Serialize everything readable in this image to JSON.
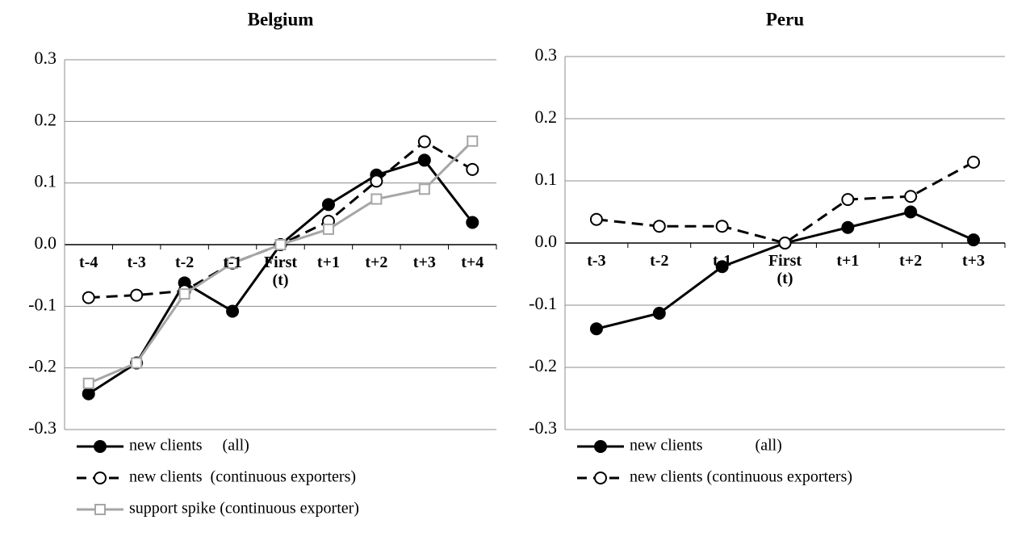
{
  "chart_data": [
    {
      "type": "line",
      "title": "Belgium",
      "categories": [
        "t-4",
        "t-3",
        "t-2",
        "t-1",
        "First\n(t)",
        "t+1",
        "t+2",
        "t+3",
        "t+4"
      ],
      "series": [
        {
          "name": "new clients     (all)",
          "color": "#000000",
          "line_style": "solid",
          "marker": "circle",
          "marker_fill": "#000000",
          "values": [
            -0.242,
            -0.192,
            -0.062,
            -0.108,
            0.0,
            0.065,
            0.113,
            0.137,
            0.036
          ]
        },
        {
          "name": "new clients  (continuous exporters)",
          "color": "#000000",
          "line_style": "dashed",
          "marker": "circle",
          "marker_fill": "#ffffff",
          "values": [
            -0.086,
            -0.082,
            -0.075,
            -0.03,
            0.0,
            0.038,
            0.103,
            0.167,
            0.122
          ]
        },
        {
          "name": "support spike (continuous exporter)",
          "color": "#a6a6a6",
          "line_style": "solid",
          "marker": "square",
          "marker_fill": "#ffffff",
          "values": [
            -0.225,
            -0.192,
            -0.08,
            -0.03,
            0.0,
            0.025,
            0.074,
            0.09,
            0.168
          ]
        }
      ],
      "ylim": [
        -0.3,
        0.3
      ],
      "yticks": [
        -0.3,
        -0.2,
        -0.1,
        {
          "value": 0,
          "label": "0.0"
        },
        0.1,
        0.2,
        0.3
      ],
      "grid": true
    },
    {
      "type": "line",
      "title": "Peru",
      "categories": [
        "t-3",
        "t-2",
        "t-1",
        "First\n(t)",
        "t+1",
        "t+2",
        "t+3"
      ],
      "series": [
        {
          "name": "new clients             (all)",
          "color": "#000000",
          "line_style": "solid",
          "marker": "circle",
          "marker_fill": "#000000",
          "values": [
            -0.138,
            -0.113,
            -0.038,
            0.0,
            0.025,
            0.05,
            0.005
          ]
        },
        {
          "name": "new clients (continuous exporters)",
          "color": "#000000",
          "line_style": "dashed",
          "marker": "circle",
          "marker_fill": "#ffffff",
          "values": [
            0.038,
            0.027,
            0.027,
            0.0,
            0.07,
            0.075,
            0.13
          ]
        }
      ],
      "ylim": [
        -0.3,
        0.3
      ],
      "yticks": [
        -0.3,
        -0.2,
        -0.1,
        {
          "value": 0,
          "label": "0.0"
        },
        0.1,
        0.2,
        0.3
      ],
      "grid": true
    }
  ]
}
